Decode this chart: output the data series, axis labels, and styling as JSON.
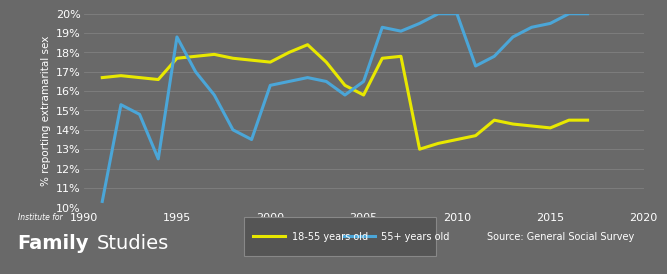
{
  "background_color": "#696969",
  "plot_bg_color": "#696969",
  "grid_color": "#808080",
  "ylabel": "% reporting extramarital sex",
  "xlim": [
    1990,
    2020
  ],
  "ylim": [
    10,
    20
  ],
  "yticks": [
    10,
    11,
    12,
    13,
    14,
    15,
    16,
    17,
    18,
    19,
    20
  ],
  "xticks": [
    1990,
    1995,
    2000,
    2005,
    2010,
    2015,
    2020
  ],
  "yellow_x": [
    1991,
    1992,
    1993,
    1994,
    1995,
    1996,
    1997,
    1998,
    1999,
    2000,
    2001,
    2002,
    2003,
    2004,
    2005,
    2006,
    2007,
    2008,
    2009,
    2010,
    2011,
    2012,
    2013,
    2014,
    2015,
    2016,
    2017
  ],
  "yellow_y": [
    16.7,
    16.8,
    16.7,
    16.6,
    17.7,
    17.8,
    17.9,
    17.7,
    17.6,
    17.5,
    18.0,
    18.4,
    17.5,
    16.3,
    15.8,
    17.7,
    17.8,
    13.0,
    13.3,
    13.5,
    13.7,
    14.5,
    14.3,
    14.2,
    14.1,
    14.5,
    14.5
  ],
  "blue_x": [
    1991,
    1992,
    1993,
    1994,
    1995,
    1996,
    1997,
    1998,
    1999,
    2000,
    2001,
    2002,
    2003,
    2004,
    2005,
    2006,
    2007,
    2008,
    2009,
    2010,
    2011,
    2012,
    2013,
    2014,
    2015,
    2016,
    2017
  ],
  "blue_y": [
    10.3,
    15.3,
    14.8,
    12.5,
    18.8,
    17.0,
    15.8,
    14.0,
    13.5,
    16.3,
    16.5,
    16.7,
    16.5,
    15.8,
    16.5,
    19.3,
    19.1,
    19.5,
    20.0,
    20.0,
    17.3,
    17.8,
    18.8,
    19.3,
    19.5,
    20.0,
    20.0
  ],
  "yellow_color": "#e8e800",
  "blue_color": "#4ba6d8",
  "line_width": 2.2,
  "legend_yellow": "18-55 years old",
  "legend_blue": "55+ years old",
  "source_text": "Source: General Social Survey",
  "footer_italic": "Institute for",
  "footer_bold": "Family",
  "footer_regular": "Studies",
  "text_color": "#ffffff",
  "legend_box_color": "#555555",
  "legend_box_edge": "#888888"
}
